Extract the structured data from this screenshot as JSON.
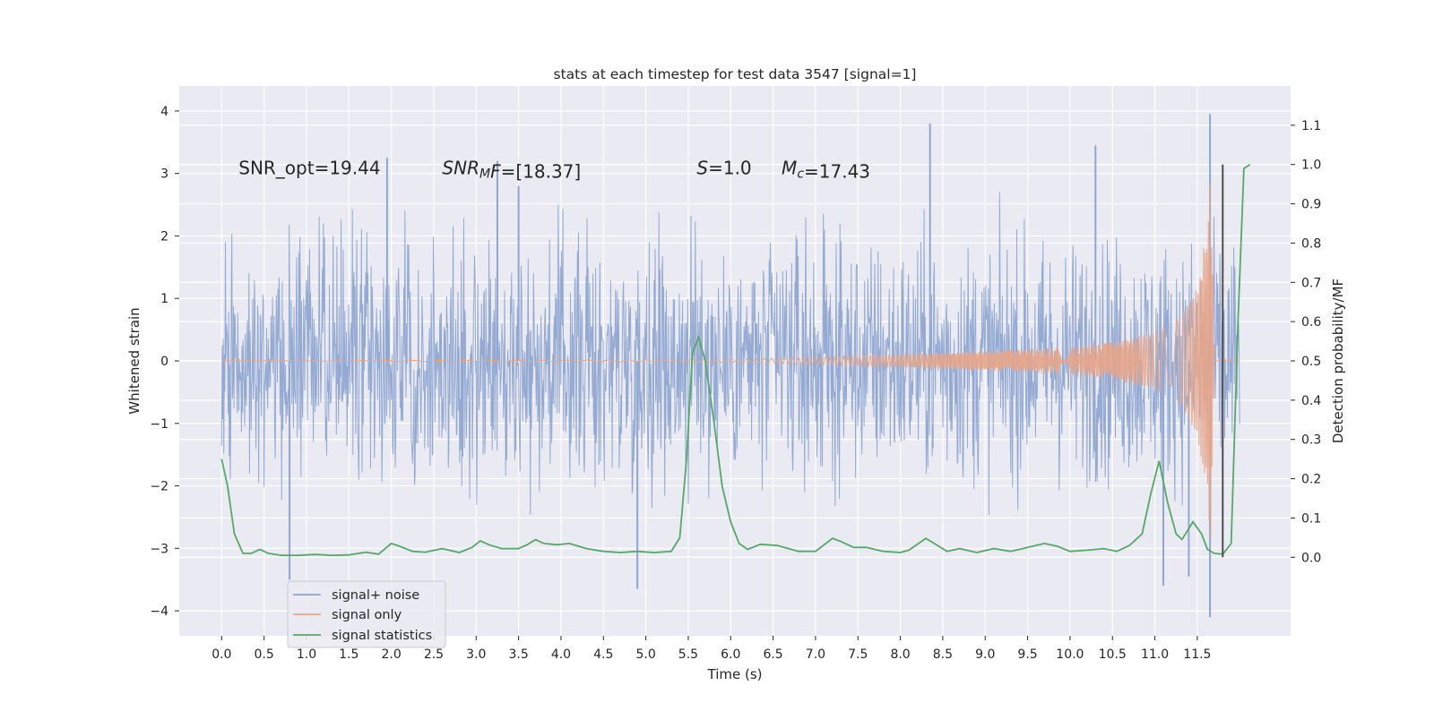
{
  "chart_data": {
    "type": "line",
    "title": "stats at each timestep for test data 3547 [signal=1]",
    "xlabel": "Time (s)",
    "ylabel_left": "Whitened strain",
    "ylabel_right": "Detection probability/MF",
    "xlim": [
      -0.5,
      12.6
    ],
    "ylim_left": [
      -4.4,
      4.4
    ],
    "ylim_right": [
      -0.2,
      1.2
    ],
    "x_ticks": [
      0.0,
      0.5,
      1.0,
      1.5,
      2.0,
      2.5,
      3.0,
      3.5,
      4.0,
      4.5,
      5.0,
      5.5,
      6.0,
      6.5,
      7.0,
      7.5,
      8.0,
      8.5,
      9.0,
      9.5,
      10.0,
      10.5,
      11.0,
      11.5
    ],
    "x_tick_labels": [
      "0.0",
      "0.5",
      "1.0",
      "1.5",
      "2.0",
      "2.5",
      "3.0",
      "3.5",
      "4.0",
      "4.5",
      "5.0",
      "5.5",
      "6.0",
      "6.5",
      "7.0",
      "7.5",
      "8.0",
      "8.5",
      "9.0",
      "9.5",
      "10.0",
      "10.5",
      "11.0",
      "11.5"
    ],
    "y_ticks_left": [
      -4,
      -3,
      -2,
      -1,
      0,
      1,
      2,
      3,
      4
    ],
    "y_tick_labels_left": [
      "−4",
      "−3",
      "−2",
      "−1",
      "0",
      "1",
      "2",
      "3",
      "4"
    ],
    "y_ticks_right": [
      0.0,
      0.1,
      0.2,
      0.3,
      0.4,
      0.5,
      0.6,
      0.7,
      0.8,
      0.9,
      1.0,
      1.1
    ],
    "y_tick_labels_right": [
      "0.0",
      "0.1",
      "0.2",
      "0.3",
      "0.4",
      "0.5",
      "0.6",
      "0.7",
      "0.8",
      "0.9",
      "1.0",
      "1.1"
    ],
    "grid": true,
    "legend_position": "lower-left",
    "series": [
      {
        "name": "signal+ noise",
        "axis": "left",
        "color": "#8fa6d1",
        "description_stats": {
          "t_start": 0.0,
          "t_end": 12.0,
          "typical_max": 2.0,
          "typical_min": -2.0,
          "extreme_max": 3.95,
          "extreme_min": -4.1
        },
        "spikes": [
          {
            "x": 1.95,
            "y": 3.25
          },
          {
            "x": 3.25,
            "y": 3.2
          },
          {
            "x": 3.5,
            "y": 2.8
          },
          {
            "x": 8.35,
            "y": 3.8
          },
          {
            "x": 10.3,
            "y": 3.45
          },
          {
            "x": 11.65,
            "y": 3.95
          },
          {
            "x": 0.8,
            "y": -3.5
          },
          {
            "x": 4.9,
            "y": -3.65
          },
          {
            "x": 11.1,
            "y": -3.6
          },
          {
            "x": 11.65,
            "y": -4.1
          },
          {
            "x": 11.4,
            "y": -3.45
          }
        ]
      },
      {
        "name": "signal only",
        "axis": "left",
        "color": "#e5a58a",
        "envelope": [
          {
            "x": 0.0,
            "amp": 0.0
          },
          {
            "x": 6.0,
            "amp": 0.02
          },
          {
            "x": 7.0,
            "amp": 0.06
          },
          {
            "x": 8.0,
            "amp": 0.1
          },
          {
            "x": 9.0,
            "amp": 0.15
          },
          {
            "x": 10.0,
            "amp": 0.22
          },
          {
            "x": 10.5,
            "amp": 0.3
          },
          {
            "x": 11.0,
            "amp": 0.45
          },
          {
            "x": 11.3,
            "amp": 0.7
          },
          {
            "x": 11.5,
            "amp": 1.2
          },
          {
            "x": 11.6,
            "amp": 2.0
          },
          {
            "x": 11.66,
            "amp": 3.0
          },
          {
            "x": 11.7,
            "amp": 0.0
          },
          {
            "x": 12.0,
            "amp": 0.0
          }
        ]
      },
      {
        "name": "signal statistics",
        "axis": "right",
        "color": "#55a868",
        "points": [
          [
            0.0,
            0.25
          ],
          [
            0.07,
            0.18
          ],
          [
            0.15,
            0.06
          ],
          [
            0.25,
            0.01
          ],
          [
            0.35,
            0.01
          ],
          [
            0.45,
            0.02
          ],
          [
            0.55,
            0.01
          ],
          [
            0.7,
            0.005
          ],
          [
            0.9,
            0.005
          ],
          [
            1.1,
            0.007
          ],
          [
            1.3,
            0.005
          ],
          [
            1.5,
            0.006
          ],
          [
            1.7,
            0.013
          ],
          [
            1.85,
            0.008
          ],
          [
            2.0,
            0.035
          ],
          [
            2.1,
            0.028
          ],
          [
            2.25,
            0.015
          ],
          [
            2.4,
            0.013
          ],
          [
            2.6,
            0.022
          ],
          [
            2.8,
            0.012
          ],
          [
            2.95,
            0.025
          ],
          [
            3.05,
            0.042
          ],
          [
            3.15,
            0.032
          ],
          [
            3.3,
            0.022
          ],
          [
            3.5,
            0.022
          ],
          [
            3.6,
            0.032
          ],
          [
            3.7,
            0.045
          ],
          [
            3.8,
            0.035
          ],
          [
            3.95,
            0.032
          ],
          [
            4.1,
            0.035
          ],
          [
            4.3,
            0.022
          ],
          [
            4.5,
            0.015
          ],
          [
            4.7,
            0.012
          ],
          [
            4.9,
            0.015
          ],
          [
            5.1,
            0.012
          ],
          [
            5.3,
            0.015
          ],
          [
            5.4,
            0.05
          ],
          [
            5.48,
            0.25
          ],
          [
            5.55,
            0.52
          ],
          [
            5.62,
            0.56
          ],
          [
            5.7,
            0.5
          ],
          [
            5.8,
            0.35
          ],
          [
            5.9,
            0.18
          ],
          [
            6.0,
            0.09
          ],
          [
            6.1,
            0.035
          ],
          [
            6.2,
            0.02
          ],
          [
            6.35,
            0.033
          ],
          [
            6.55,
            0.03
          ],
          [
            6.8,
            0.015
          ],
          [
            7.0,
            0.015
          ],
          [
            7.2,
            0.048
          ],
          [
            7.3,
            0.04
          ],
          [
            7.45,
            0.025
          ],
          [
            7.6,
            0.025
          ],
          [
            7.8,
            0.015
          ],
          [
            8.0,
            0.012
          ],
          [
            8.1,
            0.018
          ],
          [
            8.3,
            0.048
          ],
          [
            8.4,
            0.035
          ],
          [
            8.55,
            0.015
          ],
          [
            8.7,
            0.022
          ],
          [
            8.9,
            0.012
          ],
          [
            9.1,
            0.022
          ],
          [
            9.3,
            0.015
          ],
          [
            9.5,
            0.025
          ],
          [
            9.7,
            0.035
          ],
          [
            9.85,
            0.028
          ],
          [
            10.0,
            0.015
          ],
          [
            10.2,
            0.018
          ],
          [
            10.4,
            0.022
          ],
          [
            10.55,
            0.015
          ],
          [
            10.7,
            0.03
          ],
          [
            10.85,
            0.06
          ],
          [
            10.95,
            0.16
          ],
          [
            11.05,
            0.245
          ],
          [
            11.15,
            0.14
          ],
          [
            11.25,
            0.06
          ],
          [
            11.32,
            0.045
          ],
          [
            11.45,
            0.09
          ],
          [
            11.55,
            0.06
          ],
          [
            11.62,
            0.02
          ],
          [
            11.7,
            0.01
          ],
          [
            11.8,
            0.008
          ],
          [
            11.9,
            0.035
          ],
          [
            11.98,
            0.6
          ],
          [
            12.05,
            0.99
          ],
          [
            12.12,
            1.0
          ]
        ]
      }
    ],
    "vertical_lines": [
      {
        "x": 11.8,
        "y_from": 0.0,
        "y_to": 1.0,
        "axis": "right",
        "color": "#4d4d4d"
      }
    ],
    "annotations": [
      {
        "text": "SNR_opt=19.44",
        "x": 0.2,
        "y": 3.1
      },
      {
        "text": "SNR_MF=[18.37]",
        "parts": [
          {
            "t": "SNR",
            "i": true
          },
          {
            "t": "M",
            "sub": true,
            "i": true
          },
          {
            "t": "F",
            "i": true
          },
          {
            "t": "=[18.37]"
          }
        ],
        "x": 2.6,
        "y": 3.1
      },
      {
        "text": "S=1.0",
        "parts": [
          {
            "t": "S",
            "i": true
          },
          {
            "t": "=1.0"
          }
        ],
        "x": 5.6,
        "y": 3.1
      },
      {
        "text": "Mc=17.43",
        "parts": [
          {
            "t": "M",
            "i": true
          },
          {
            "t": "c",
            "sub": true,
            "i": true
          },
          {
            "t": "=17.43"
          }
        ],
        "x": 6.6,
        "y": 3.1
      }
    ]
  }
}
